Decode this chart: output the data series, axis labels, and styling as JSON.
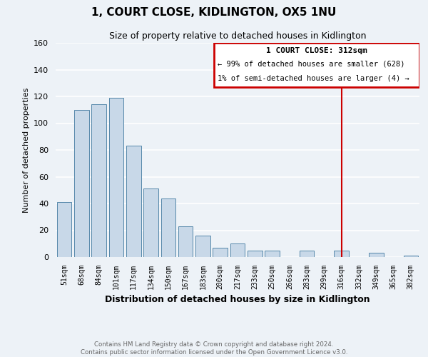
{
  "title": "1, COURT CLOSE, KIDLINGTON, OX5 1NU",
  "subtitle": "Size of property relative to detached houses in Kidlington",
  "xlabel": "Distribution of detached houses by size in Kidlington",
  "ylabel": "Number of detached properties",
  "bar_labels": [
    "51sqm",
    "68sqm",
    "84sqm",
    "101sqm",
    "117sqm",
    "134sqm",
    "150sqm",
    "167sqm",
    "183sqm",
    "200sqm",
    "217sqm",
    "233sqm",
    "250sqm",
    "266sqm",
    "283sqm",
    "299sqm",
    "316sqm",
    "332sqm",
    "349sqm",
    "365sqm",
    "382sqm"
  ],
  "bar_values": [
    41,
    110,
    114,
    119,
    83,
    51,
    44,
    23,
    16,
    7,
    10,
    5,
    5,
    0,
    5,
    0,
    5,
    0,
    3,
    0,
    1
  ],
  "bar_color": "#c8d8e8",
  "bar_edge_color": "#5588aa",
  "ylim": [
    0,
    160
  ],
  "yticks": [
    0,
    20,
    40,
    60,
    80,
    100,
    120,
    140,
    160
  ],
  "vline_x": 16,
  "vline_color": "#cc0000",
  "annotation_title": "1 COURT CLOSE: 312sqm",
  "annotation_line1": "← 99% of detached houses are smaller (628)",
  "annotation_line2": "1% of semi-detached houses are larger (4) →",
  "annotation_box_color": "#cc0000",
  "footnote1": "Contains HM Land Registry data © Crown copyright and database right 2024.",
  "footnote2": "Contains public sector information licensed under the Open Government Licence v3.0.",
  "background_color": "#edf2f7",
  "grid_color": "#ffffff"
}
